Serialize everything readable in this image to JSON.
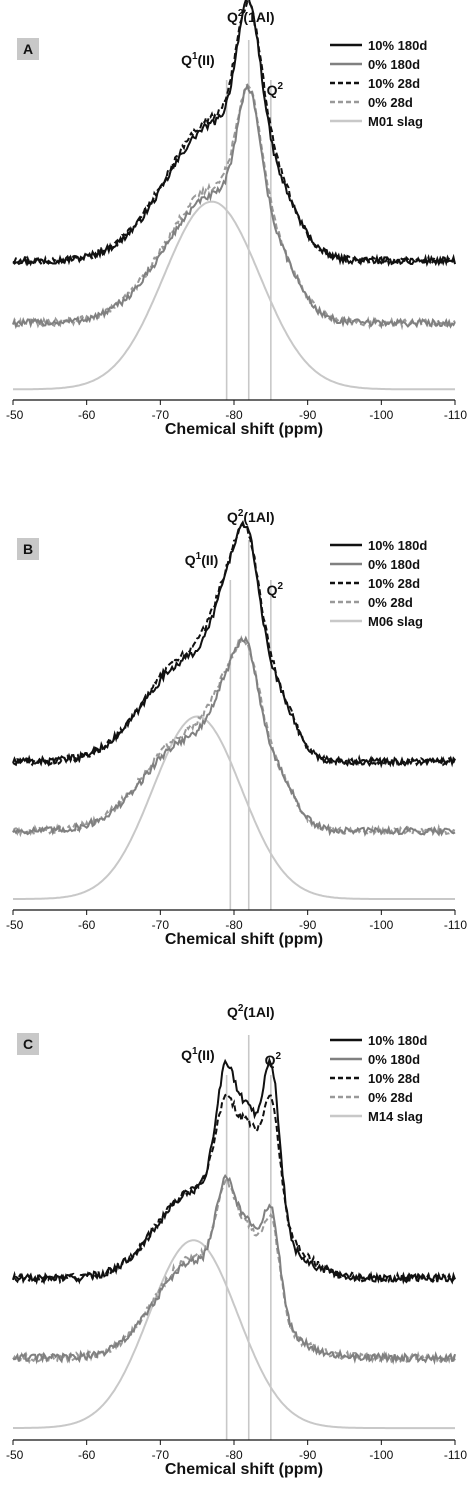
{
  "chart_data": [
    {
      "type": "line",
      "panel_label": "A",
      "xlabel": "Chemical shift (ppm)",
      "xlim": [
        -50,
        -110
      ],
      "xticks": [
        -50,
        -60,
        -70,
        -80,
        -90,
        -100,
        -110
      ],
      "peak_lines": [
        {
          "label_main": "Q",
          "label_sup": "1",
          "label_rest": "(II)",
          "x": -79
        },
        {
          "label_main": "Q",
          "label_sup": "2",
          "label_rest": "(1Al)",
          "x": -82
        },
        {
          "label_main": "Q",
          "label_sup": "2",
          "label_rest": "",
          "x": -85
        }
      ],
      "series": [
        {
          "name": "10% 180d",
          "color": "#111111",
          "style": "solid",
          "offset": 0.75,
          "bg": 0.03,
          "peaks": [
            [
              -79,
              0.45,
              5.5
            ],
            [
              -82,
              0.7,
              1.6
            ],
            [
              -74,
              0.3,
              6
            ],
            [
              -85.5,
              0.2,
              3
            ]
          ]
        },
        {
          "name": "0% 180d",
          "color": "#808080",
          "style": "solid",
          "offset": 0.4,
          "bg": 0.03,
          "peaks": [
            [
              -79,
              0.4,
              5.5
            ],
            [
              -82,
              0.62,
              1.6
            ],
            [
              -74,
              0.3,
              6
            ],
            [
              -85.5,
              0.2,
              3
            ]
          ]
        },
        {
          "name": "10% 28d",
          "color": "#111111",
          "style": "dashed",
          "offset": 0.75,
          "bg": 0.03,
          "peaks": [
            [
              -79,
              0.46,
              5.5
            ],
            [
              -82,
              0.66,
              1.7
            ],
            [
              -74,
              0.32,
              6
            ],
            [
              -85.5,
              0.22,
              3
            ]
          ]
        },
        {
          "name": "0% 28d",
          "color": "#999999",
          "style": "dashed",
          "offset": 0.4,
          "bg": 0.03,
          "peaks": [
            [
              -79,
              0.42,
              5.5
            ],
            [
              -82,
              0.6,
              1.7
            ],
            [
              -74,
              0.32,
              6
            ],
            [
              -85.5,
              0.2,
              3
            ]
          ]
        },
        {
          "name": "M01 slag",
          "color": "#c8c8c8",
          "style": "solid",
          "offset": 0.06,
          "bg": 0.0,
          "peaks": [
            [
              -77,
              0.95,
              6.5
            ]
          ]
        }
      ]
    },
    {
      "type": "line",
      "panel_label": "B",
      "xlabel": "Chemical shift (ppm)",
      "xlim": [
        -50,
        -110
      ],
      "xticks": [
        -50,
        -60,
        -70,
        -80,
        -90,
        -100,
        -110
      ],
      "peak_lines": [
        {
          "label_main": "Q",
          "label_sup": "1",
          "label_rest": "(II)",
          "x": -79.5
        },
        {
          "label_main": "Q",
          "label_sup": "2",
          "label_rest": "(1Al)",
          "x": -82
        },
        {
          "label_main": "Q",
          "label_sup": "2",
          "label_rest": "",
          "x": -85
        }
      ],
      "series": [
        {
          "name": "10% 180d",
          "color": "#111111",
          "style": "solid",
          "offset": 0.78,
          "bg": 0.03,
          "peaks": [
            [
              -79.5,
              0.5,
              2.2
            ],
            [
              -82,
              0.55,
              1.6
            ],
            [
              -74,
              0.5,
              6
            ],
            [
              -85.5,
              0.3,
              2.5
            ]
          ]
        },
        {
          "name": "0% 180d",
          "color": "#808080",
          "style": "solid",
          "offset": 0.4,
          "bg": 0.03,
          "peaks": [
            [
              -79.5,
              0.4,
              2.2
            ],
            [
              -82,
              0.42,
              1.6
            ],
            [
              -74,
              0.45,
              6
            ],
            [
              -85.5,
              0.25,
              2.5
            ]
          ]
        },
        {
          "name": "10% 28d",
          "color": "#111111",
          "style": "dashed",
          "offset": 0.78,
          "bg": 0.03,
          "peaks": [
            [
              -79.5,
              0.48,
              2.4
            ],
            [
              -82,
              0.52,
              1.7
            ],
            [
              -74,
              0.52,
              6
            ],
            [
              -85.5,
              0.3,
              2.5
            ]
          ]
        },
        {
          "name": "0% 28d",
          "color": "#999999",
          "style": "dashed",
          "offset": 0.4,
          "bg": 0.03,
          "peaks": [
            [
              -79.5,
              0.38,
              2.4
            ],
            [
              -82,
              0.4,
              1.7
            ],
            [
              -74,
              0.48,
              6
            ],
            [
              -85.5,
              0.24,
              2.5
            ]
          ]
        },
        {
          "name": "M06 slag",
          "color": "#c8c8c8",
          "style": "solid",
          "offset": 0.06,
          "bg": 0.0,
          "peaks": [
            [
              -75,
              0.9,
              6
            ]
          ]
        }
      ]
    },
    {
      "type": "line",
      "panel_label": "C",
      "xlabel": "Chemical shift (ppm)",
      "xlim": [
        -50,
        -110
      ],
      "xticks": [
        -50,
        -60,
        -70,
        -80,
        -90,
        -100,
        -110
      ],
      "peak_lines": [
        {
          "label_main": "Q",
          "label_sup": "1",
          "label_rest": "(II)",
          "x": -79
        },
        {
          "label_main": "Q",
          "label_sup": "2",
          "label_rest": "(1Al)",
          "x": -82
        },
        {
          "label_main": "Q",
          "label_sup": "2",
          "label_rest": "",
          "x": -85
        }
      ],
      "series": [
        {
          "name": "10% 180d",
          "color": "#111111",
          "style": "solid",
          "offset": 0.78,
          "bg": 0.03,
          "peaks": [
            [
              -79,
              0.6,
              1.4
            ],
            [
              -82,
              0.4,
              1.2
            ],
            [
              -85,
              0.75,
              1.2
            ],
            [
              -74,
              0.35,
              5
            ],
            [
              -83,
              0.2,
              5
            ]
          ]
        },
        {
          "name": "0% 180d",
          "color": "#808080",
          "style": "solid",
          "offset": 0.38,
          "bg": 0.03,
          "peaks": [
            [
              -79,
              0.45,
              1.4
            ],
            [
              -82,
              0.3,
              1.2
            ],
            [
              -85,
              0.5,
              1.2
            ],
            [
              -74,
              0.4,
              5
            ],
            [
              -83,
              0.15,
              5
            ]
          ]
        },
        {
          "name": "10% 28d",
          "color": "#111111",
          "style": "dashed",
          "offset": 0.78,
          "bg": 0.03,
          "peaks": [
            [
              -79,
              0.42,
              1.4
            ],
            [
              -82,
              0.3,
              1.2
            ],
            [
              -85,
              0.55,
              1.2
            ],
            [
              -74,
              0.35,
              5
            ],
            [
              -83,
              0.25,
              5
            ]
          ]
        },
        {
          "name": "0% 28d",
          "color": "#999999",
          "style": "dashed",
          "offset": 0.38,
          "bg": 0.03,
          "peaks": [
            [
              -79,
              0.42,
              1.4
            ],
            [
              -82,
              0.28,
              1.2
            ],
            [
              -85,
              0.45,
              1.2
            ],
            [
              -74,
              0.42,
              5
            ],
            [
              -83,
              0.15,
              5
            ]
          ]
        },
        {
          "name": "M14 slag",
          "color": "#c8c8c8",
          "style": "solid",
          "offset": 0.06,
          "bg": 0.0,
          "peaks": [
            [
              -74.5,
              0.85,
              6
            ]
          ]
        }
      ]
    }
  ]
}
